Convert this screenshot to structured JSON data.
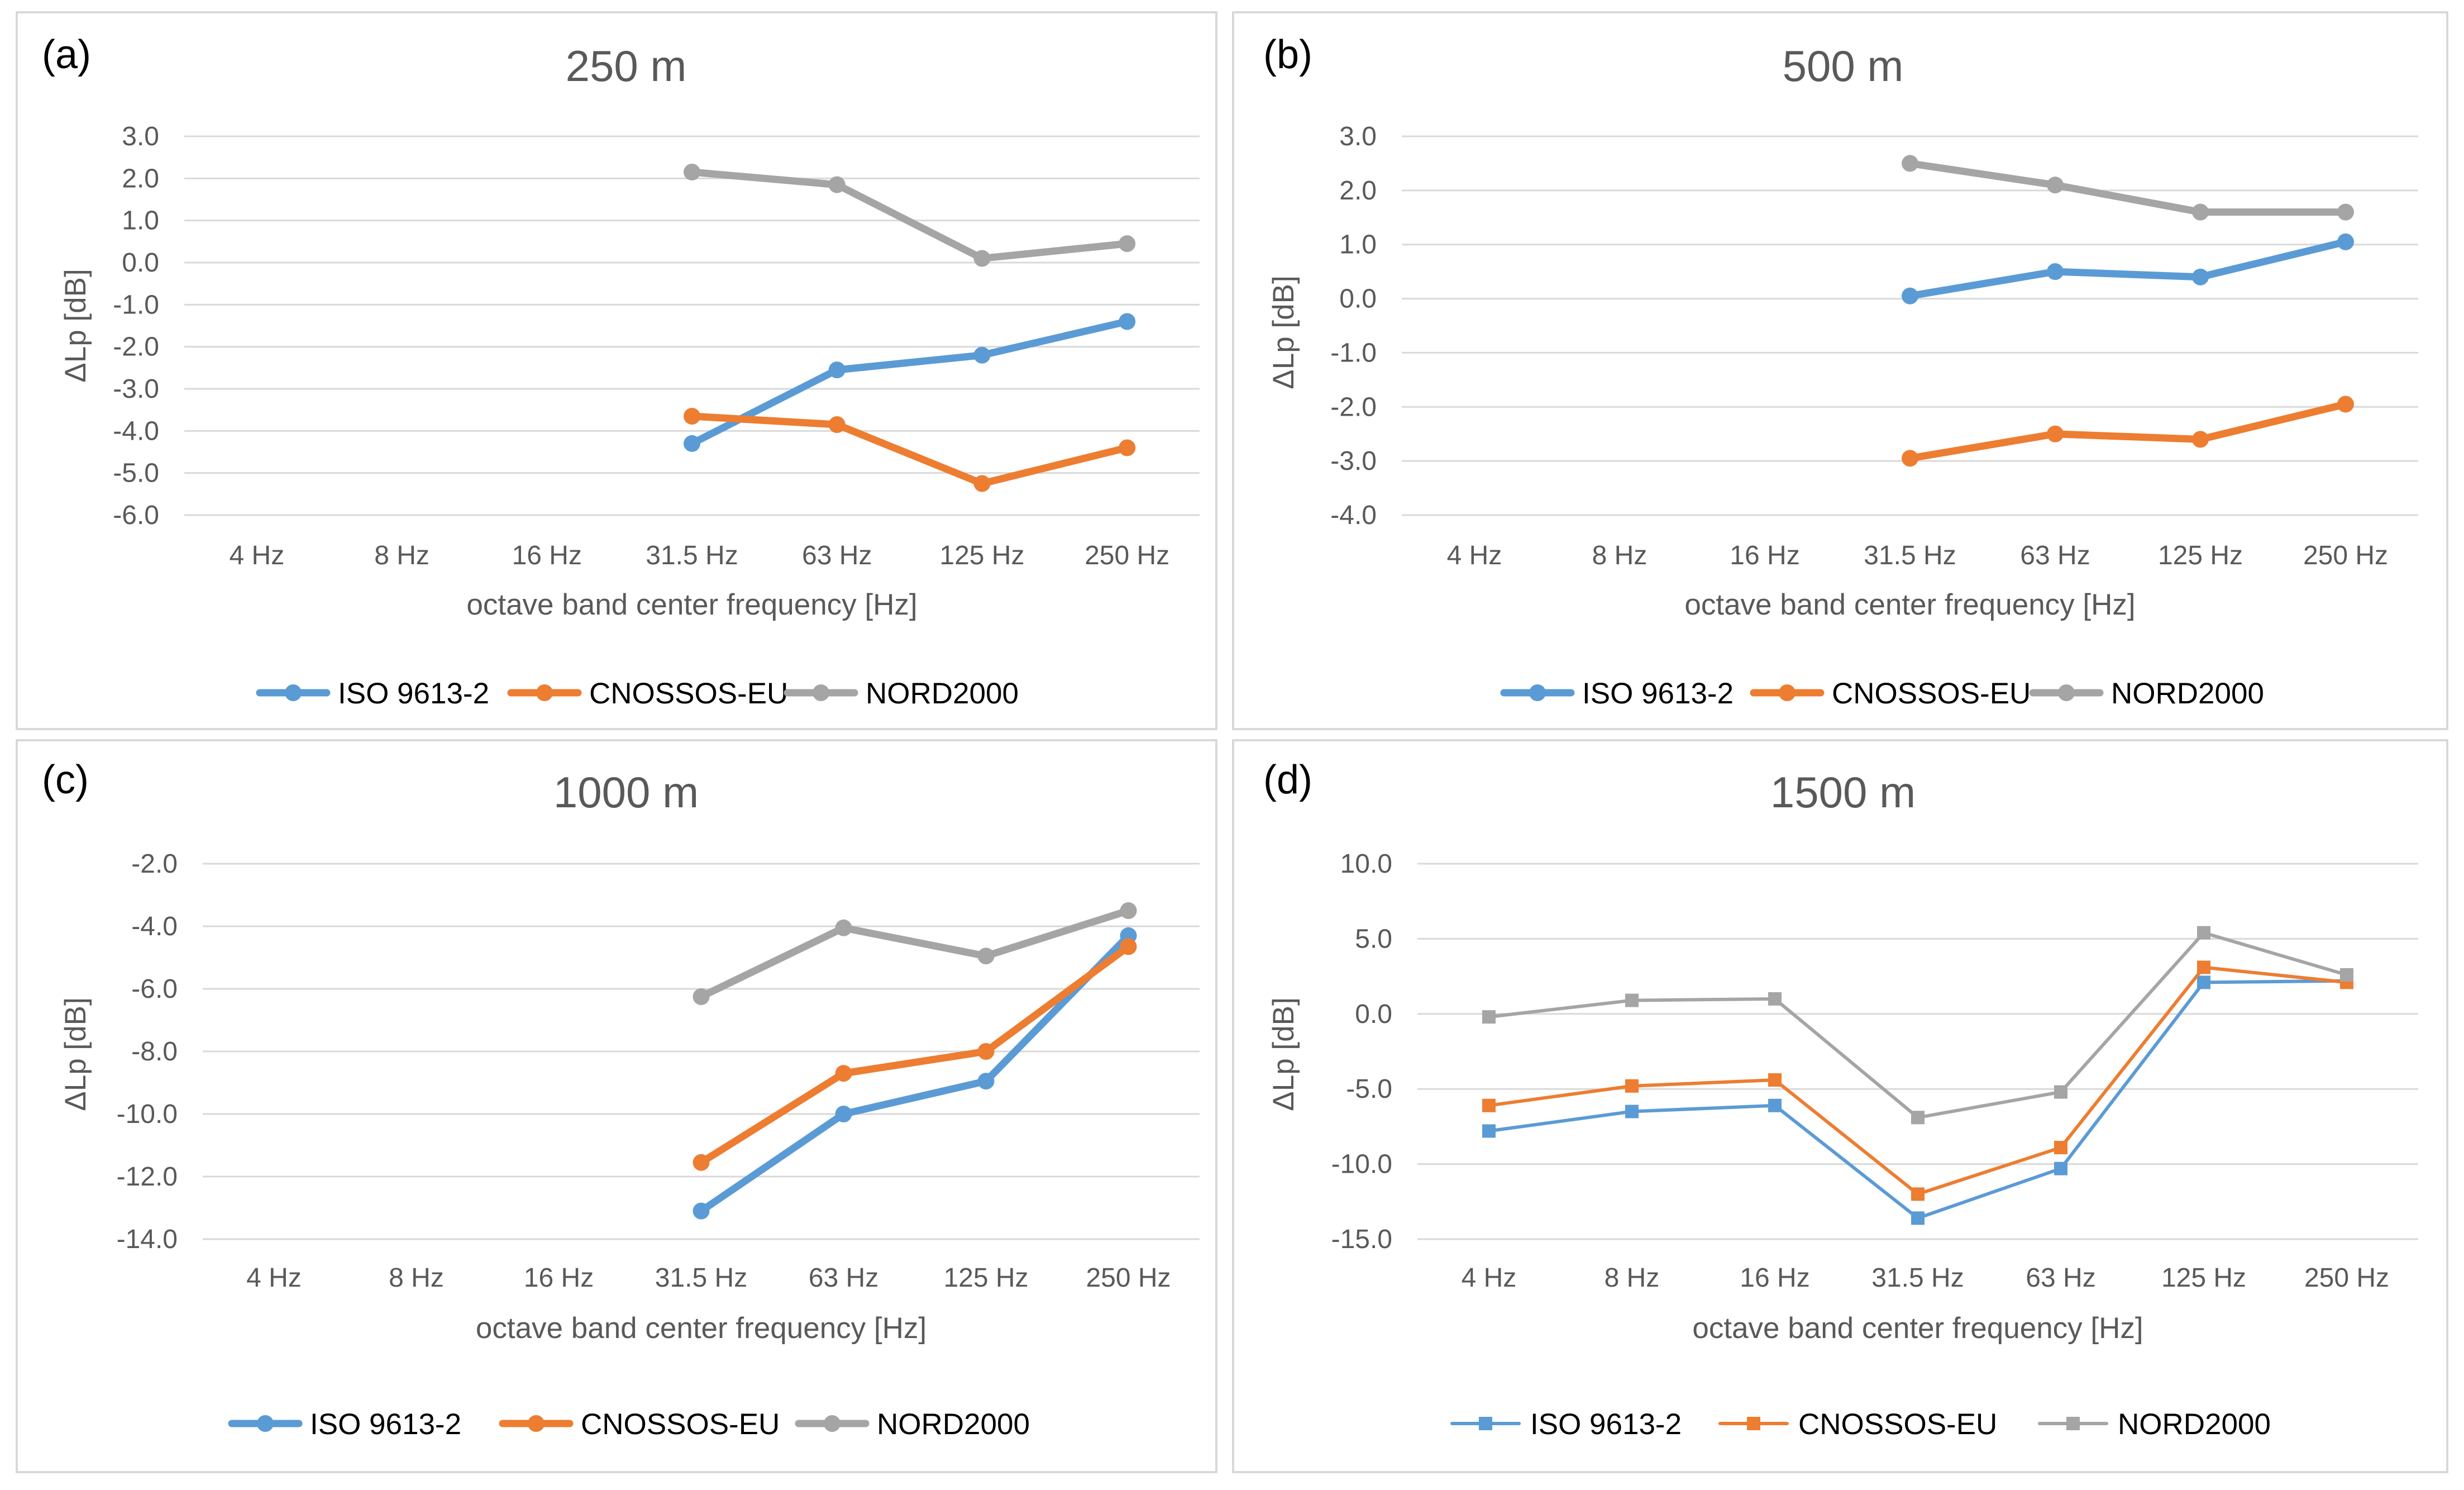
{
  "chart_data": [
    {
      "type": "line",
      "panel_label": "(a)",
      "title": "250 m",
      "xlabel": "octave band center frequency [Hz]",
      "ylabel": "ΔLp [dB]",
      "categories": [
        "4 Hz",
        "8 Hz",
        "16 Hz",
        "31.5 Hz",
        "63 Hz",
        "125 Hz",
        "250 Hz"
      ],
      "ylim": [
        -6.0,
        3.0
      ],
      "yticks": [
        "3.0",
        "2.0",
        "1.0",
        "0.0",
        "-1.0",
        "-2.0",
        "-3.0",
        "-4.0",
        "-5.0",
        "-6.0"
      ],
      "grid": true,
      "marker": "circle",
      "line_width": "thick",
      "series": [
        {
          "name": "ISO 9613-2",
          "color": "#5b9bd5",
          "values": [
            null,
            null,
            null,
            -4.3,
            -2.55,
            -2.2,
            -1.4
          ]
        },
        {
          "name": "CNOSSOS-EU",
          "color": "#ed7d31",
          "values": [
            null,
            null,
            null,
            -3.65,
            -3.85,
            -5.25,
            -4.4
          ]
        },
        {
          "name": "NORD2000",
          "color": "#a5a5a5",
          "values": [
            null,
            null,
            null,
            2.15,
            1.85,
            0.1,
            0.45
          ]
        }
      ]
    },
    {
      "type": "line",
      "panel_label": "(b)",
      "title": "500 m",
      "xlabel": "octave band center frequency   [Hz]",
      "ylabel": "ΔLp [dB]",
      "categories": [
        "4 Hz",
        "8 Hz",
        "16 Hz",
        "31.5 Hz",
        "63 Hz",
        "125 Hz",
        "250 Hz"
      ],
      "ylim": [
        -4.0,
        3.0
      ],
      "yticks": [
        "3.0",
        "2.0",
        "1.0",
        "0.0",
        "-1.0",
        "-2.0",
        "-3.0",
        "-4.0"
      ],
      "grid": true,
      "marker": "circle",
      "line_width": "thick",
      "series": [
        {
          "name": "ISO 9613-2",
          "color": "#5b9bd5",
          "values": [
            null,
            null,
            null,
            0.05,
            0.5,
            0.4,
            1.05
          ]
        },
        {
          "name": "CNOSSOS-EU",
          "color": "#ed7d31",
          "values": [
            null,
            null,
            null,
            -2.95,
            -2.5,
            -2.6,
            -1.95
          ]
        },
        {
          "name": "NORD2000",
          "color": "#a5a5a5",
          "values": [
            null,
            null,
            null,
            2.5,
            2.1,
            1.6,
            1.6
          ]
        }
      ]
    },
    {
      "type": "line",
      "panel_label": "(c)",
      "title": "1000 m",
      "xlabel": "octave band center frequency   [Hz]",
      "ylabel": "ΔLp [dB]",
      "categories": [
        "4 Hz",
        "8 Hz",
        "16 Hz",
        "31.5 Hz",
        "63 Hz",
        "125 Hz",
        "250 Hz"
      ],
      "ylim": [
        -14.0,
        -2.0
      ],
      "yticks": [
        "-2.0",
        "-4.0",
        "-6.0",
        "-8.0",
        "-10.0",
        "-12.0",
        "-14.0"
      ],
      "grid": true,
      "marker": "circle",
      "line_width": "thick",
      "series": [
        {
          "name": "ISO 9613-2",
          "color": "#5b9bd5",
          "values": [
            null,
            null,
            null,
            -13.1,
            -10.0,
            -8.95,
            -4.3
          ]
        },
        {
          "name": "CNOSSOS-EU",
          "color": "#ed7d31",
          "values": [
            null,
            null,
            null,
            -11.55,
            -8.7,
            -8.0,
            -4.65
          ]
        },
        {
          "name": "NORD2000",
          "color": "#a5a5a5",
          "values": [
            null,
            null,
            null,
            -6.25,
            -4.05,
            -4.95,
            -3.5
          ]
        }
      ]
    },
    {
      "type": "line",
      "panel_label": "(d)",
      "title": "1500 m",
      "xlabel": "octave band center frequency   [Hz]",
      "ylabel": "ΔLp [dB]",
      "categories": [
        "4 Hz",
        "8 Hz",
        "16 Hz",
        "31.5 Hz",
        "63 Hz",
        "125 Hz",
        "250 Hz"
      ],
      "ylim": [
        -15.0,
        10.0
      ],
      "yticks": [
        "10.0",
        "5.0",
        "0.0",
        "-5.0",
        "-10.0",
        "-15.0"
      ],
      "grid": true,
      "marker": "square",
      "line_width": "thin",
      "series": [
        {
          "name": "ISO 9613-2",
          "color": "#5b9bd5",
          "values": [
            -7.8,
            -6.5,
            -6.1,
            -13.6,
            -10.3,
            2.1,
            2.2
          ]
        },
        {
          "name": "CNOSSOS-EU",
          "color": "#ed7d31",
          "values": [
            -6.1,
            -4.8,
            -4.4,
            -12.0,
            -8.9,
            3.1,
            2.1
          ]
        },
        {
          "name": "NORD2000",
          "color": "#a5a5a5",
          "values": [
            -0.2,
            0.9,
            1.0,
            -6.9,
            -5.2,
            5.4,
            2.6
          ]
        }
      ]
    }
  ]
}
